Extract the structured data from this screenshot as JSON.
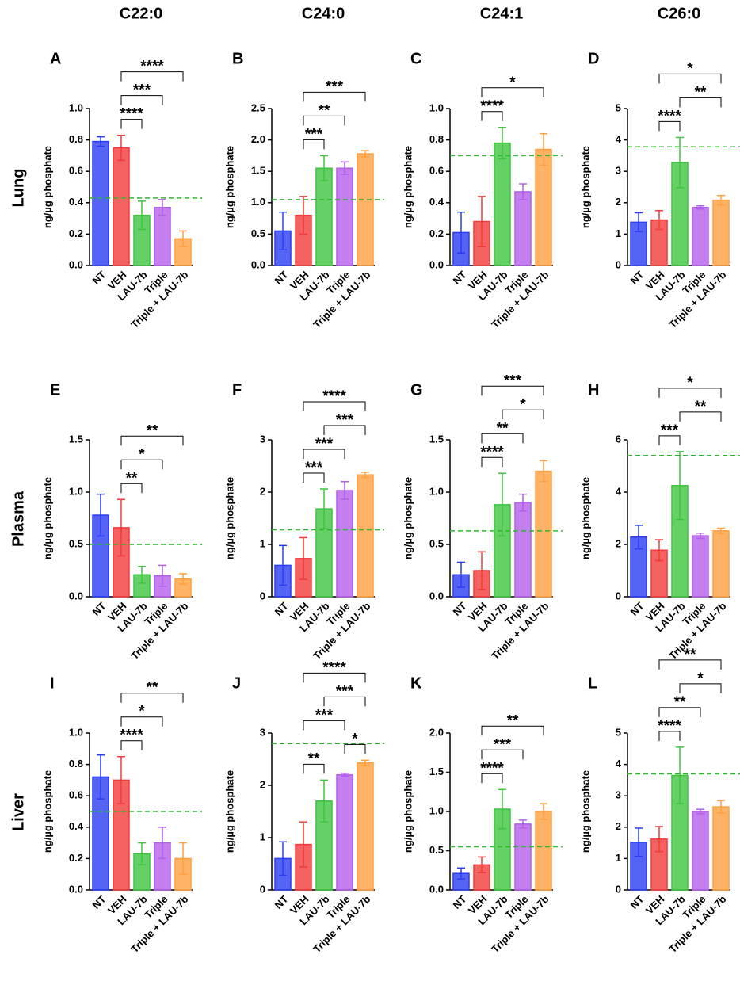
{
  "column_titles": [
    "C22:0",
    "C24:0",
    "C24:1",
    "C26:0"
  ],
  "row_labels": [
    "Lung",
    "Plasma",
    "Liver"
  ],
  "chart_data": [
    {
      "type": "bar",
      "panel": "A",
      "ylabel": "ng/µg phosphate",
      "categories": [
        "NT",
        "VEH",
        "LAU-7b",
        "Triple",
        "Triple + LAU-7b"
      ],
      "colors": [
        "#2b3df2",
        "#f23b3b",
        "#3fc43f",
        "#b35fe8",
        "#ffa040"
      ],
      "values": [
        0.79,
        0.75,
        0.32,
        0.37,
        0.17
      ],
      "errors": [
        0.03,
        0.08,
        0.09,
        0.05,
        0.05
      ],
      "ylim": [
        0,
        1
      ],
      "yticks": [
        {
          "value": 0,
          "label": "0.0"
        },
        0.2,
        0.4,
        0.6,
        0.8,
        {
          "value": 1,
          "label": "1.0"
        }
      ],
      "reference_line": 0.43,
      "reference_color": "#2cb82c",
      "annotations": [
        {
          "from": "VEH",
          "to": "LAU-7b",
          "label": "****"
        },
        {
          "from": "VEH",
          "to": "Triple",
          "label": "***"
        },
        {
          "from": "VEH",
          "to": "Triple + LAU-7b",
          "label": "****"
        }
      ]
    },
    {
      "type": "bar",
      "panel": "B",
      "ylabel": "ng/µg phosphate",
      "categories": [
        "NT",
        "VEH",
        "LAU-7b",
        "Triple",
        "Triple + LAU-7b"
      ],
      "colors": [
        "#2b3df2",
        "#f23b3b",
        "#3fc43f",
        "#b35fe8",
        "#ffa040"
      ],
      "values": [
        0.55,
        0.8,
        1.55,
        1.55,
        1.78
      ],
      "errors": [
        0.3,
        0.3,
        0.2,
        0.1,
        0.05
      ],
      "ylim": [
        0,
        2.5
      ],
      "yticks": [
        {
          "value": 0,
          "label": "0.0"
        },
        0.5,
        {
          "value": 1,
          "label": "1.0"
        },
        1.5,
        {
          "value": 2,
          "label": "2.0"
        },
        2.5
      ],
      "reference_line": 1.05,
      "reference_color": "#2cb82c",
      "annotations": [
        {
          "from": "VEH",
          "to": "LAU-7b",
          "label": "***"
        },
        {
          "from": "VEH",
          "to": "Triple",
          "label": "**"
        },
        {
          "from": "VEH",
          "to": "Triple + LAU-7b",
          "label": "***"
        }
      ]
    },
    {
      "type": "bar",
      "panel": "C",
      "ylabel": "ng/µg phosphate",
      "categories": [
        "NT",
        "VEH",
        "LAU-7b",
        "Triple",
        "Triple + LAU-7b"
      ],
      "colors": [
        "#2b3df2",
        "#f23b3b",
        "#3fc43f",
        "#b35fe8",
        "#ffa040"
      ],
      "values": [
        0.21,
        0.28,
        0.78,
        0.47,
        0.74
      ],
      "errors": [
        0.13,
        0.16,
        0.1,
        0.05,
        0.1
      ],
      "ylim": [
        0,
        1
      ],
      "yticks": [
        {
          "value": 0,
          "label": "0.0"
        },
        0.2,
        0.4,
        0.6,
        0.8,
        {
          "value": 1,
          "label": "1.0"
        }
      ],
      "reference_line": 0.7,
      "reference_color": "#2cb82c",
      "annotations": [
        {
          "from": "VEH",
          "to": "LAU-7b",
          "label": "****"
        },
        {
          "from": "VEH",
          "to": "Triple + LAU-7b",
          "label": "*"
        }
      ]
    },
    {
      "type": "bar",
      "panel": "D",
      "ylabel": "ng/µg phosphate",
      "categories": [
        "NT",
        "VEH",
        "LAU-7b",
        "Triple",
        "Triple + LAU-7b"
      ],
      "colors": [
        "#2b3df2",
        "#f23b3b",
        "#3fc43f",
        "#b35fe8",
        "#ffa040"
      ],
      "values": [
        1.38,
        1.45,
        3.28,
        1.85,
        2.08
      ],
      "errors": [
        0.3,
        0.3,
        0.8,
        0.05,
        0.15
      ],
      "ylim": [
        0,
        5
      ],
      "yticks": [
        0,
        1,
        2,
        3,
        4,
        5
      ],
      "reference_line": 3.78,
      "reference_color": "#2cb82c",
      "annotations": [
        {
          "from": "VEH",
          "to": "LAU-7b",
          "label": "****"
        },
        {
          "from": "LAU-7b",
          "to": "Triple + LAU-7b",
          "label": "**"
        },
        {
          "from": "VEH",
          "to": "Triple + LAU-7b",
          "label": "*"
        }
      ]
    },
    {
      "type": "bar",
      "panel": "E",
      "ylabel": "ng/µg phosphate",
      "categories": [
        "NT",
        "VEH",
        "LAU-7b",
        "Triple",
        "Triple + LAU-7b"
      ],
      "colors": [
        "#2b3df2",
        "#f23b3b",
        "#3fc43f",
        "#b35fe8",
        "#ffa040"
      ],
      "values": [
        0.78,
        0.66,
        0.21,
        0.2,
        0.17
      ],
      "errors": [
        0.2,
        0.27,
        0.08,
        0.1,
        0.05
      ],
      "ylim": [
        0,
        1.5
      ],
      "yticks": [
        {
          "value": 0,
          "label": "0.0"
        },
        0.5,
        {
          "value": 1,
          "label": "1.0"
        },
        1.5
      ],
      "reference_line": 0.5,
      "reference_color": "#2cb82c",
      "annotations": [
        {
          "from": "VEH",
          "to": "LAU-7b",
          "label": "**"
        },
        {
          "from": "VEH",
          "to": "Triple",
          "label": "*"
        },
        {
          "from": "VEH",
          "to": "Triple + LAU-7b",
          "label": "**"
        }
      ]
    },
    {
      "type": "bar",
      "panel": "F",
      "ylabel": "ng/µg phosphate",
      "categories": [
        "NT",
        "VEH",
        "LAU-7b",
        "Triple",
        "Triple + LAU-7b"
      ],
      "colors": [
        "#2b3df2",
        "#f23b3b",
        "#3fc43f",
        "#b35fe8",
        "#ffa040"
      ],
      "values": [
        0.6,
        0.73,
        1.68,
        2.03,
        2.33
      ],
      "errors": [
        0.38,
        0.4,
        0.38,
        0.17,
        0.05
      ],
      "ylim": [
        0,
        3
      ],
      "yticks": [
        0,
        1,
        2,
        3
      ],
      "reference_line": 1.28,
      "reference_color": "#2cb82c",
      "annotations": [
        {
          "from": "VEH",
          "to": "LAU-7b",
          "label": "***"
        },
        {
          "from": "VEH",
          "to": "Triple",
          "label": "***"
        },
        {
          "from": "LAU-7b",
          "to": "Triple + LAU-7b",
          "label": "***"
        },
        {
          "from": "VEH",
          "to": "Triple + LAU-7b",
          "label": "****"
        }
      ]
    },
    {
      "type": "bar",
      "panel": "G",
      "ylabel": "ng/µg phosphate",
      "categories": [
        "NT",
        "VEH",
        "LAU-7b",
        "Triple",
        "Triple + LAU-7b"
      ],
      "colors": [
        "#2b3df2",
        "#f23b3b",
        "#3fc43f",
        "#b35fe8",
        "#ffa040"
      ],
      "values": [
        0.21,
        0.25,
        0.88,
        0.9,
        1.2
      ],
      "errors": [
        0.12,
        0.18,
        0.3,
        0.08,
        0.1
      ],
      "ylim": [
        0,
        1.5
      ],
      "yticks": [
        {
          "value": 0,
          "label": "0.0"
        },
        0.5,
        {
          "value": 1,
          "label": "1.0"
        },
        1.5
      ],
      "reference_line": 0.63,
      "reference_color": "#2cb82c",
      "annotations": [
        {
          "from": "VEH",
          "to": "LAU-7b",
          "label": "****"
        },
        {
          "from": "VEH",
          "to": "Triple",
          "label": "**"
        },
        {
          "from": "LAU-7b",
          "to": "Triple + LAU-7b",
          "label": "*"
        },
        {
          "from": "VEH",
          "to": "Triple + LAU-7b",
          "label": "***"
        }
      ]
    },
    {
      "type": "bar",
      "panel": "H",
      "ylabel": "ng/µg phosphate",
      "categories": [
        "NT",
        "VEH",
        "LAU-7b",
        "Triple",
        "Triple + LAU-7b"
      ],
      "colors": [
        "#2b3df2",
        "#f23b3b",
        "#3fc43f",
        "#b35fe8",
        "#ffa040"
      ],
      "values": [
        2.28,
        1.78,
        4.25,
        2.33,
        2.52
      ],
      "errors": [
        0.45,
        0.4,
        1.3,
        0.1,
        0.1
      ],
      "ylim": [
        0,
        6
      ],
      "yticks": [
        0,
        2,
        4,
        6
      ],
      "reference_line": 5.4,
      "reference_color": "#2cb82c",
      "annotations": [
        {
          "from": "VEH",
          "to": "LAU-7b",
          "label": "***"
        },
        {
          "from": "LAU-7b",
          "to": "Triple + LAU-7b",
          "label": "**"
        },
        {
          "from": "VEH",
          "to": "Triple + LAU-7b",
          "label": "*"
        }
      ]
    },
    {
      "type": "bar",
      "panel": "I",
      "ylabel": "ng/µg phosphate",
      "categories": [
        "NT",
        "VEH",
        "LAU-7b",
        "Triple",
        "Triple + LAU-7b"
      ],
      "colors": [
        "#2b3df2",
        "#f23b3b",
        "#3fc43f",
        "#b35fe8",
        "#ffa040"
      ],
      "values": [
        0.72,
        0.7,
        0.23,
        0.3,
        0.2
      ],
      "errors": [
        0.14,
        0.15,
        0.07,
        0.1,
        0.1
      ],
      "ylim": [
        0,
        1
      ],
      "yticks": [
        {
          "value": 0,
          "label": "0.0"
        },
        0.2,
        0.4,
        0.6,
        0.8,
        {
          "value": 1,
          "label": "1.0"
        }
      ],
      "reference_line": 0.5,
      "reference_color": "#2cb82c",
      "annotations": [
        {
          "from": "VEH",
          "to": "LAU-7b",
          "label": "****"
        },
        {
          "from": "VEH",
          "to": "Triple",
          "label": "*"
        },
        {
          "from": "VEH",
          "to": "Triple + LAU-7b",
          "label": "**"
        }
      ]
    },
    {
      "type": "bar",
      "panel": "J",
      "ylabel": "ng/µg phosphate",
      "categories": [
        "NT",
        "VEH",
        "LAU-7b",
        "Triple",
        "Triple + LAU-7b"
      ],
      "colors": [
        "#2b3df2",
        "#f23b3b",
        "#3fc43f",
        "#b35fe8",
        "#ffa040"
      ],
      "values": [
        0.6,
        0.87,
        1.7,
        2.2,
        2.43
      ],
      "errors": [
        0.32,
        0.43,
        0.4,
        0.03,
        0.05
      ],
      "ylim": [
        0,
        3
      ],
      "yticks": [
        0,
        1,
        2,
        3
      ],
      "reference_line": 2.8,
      "reference_color": "#2cb82c",
      "annotations": [
        {
          "from": "VEH",
          "to": "LAU-7b",
          "label": "**"
        },
        {
          "from": "Triple",
          "to": "Triple + LAU-7b",
          "label": "*"
        },
        {
          "from": "VEH",
          "to": "Triple",
          "label": "***"
        },
        {
          "from": "LAU-7b",
          "to": "Triple + LAU-7b",
          "label": "***"
        },
        {
          "from": "VEH",
          "to": "Triple + LAU-7b",
          "label": "****"
        }
      ]
    },
    {
      "type": "bar",
      "panel": "K",
      "ylabel": "ng/µg phosphate",
      "categories": [
        "NT",
        "VEH",
        "LAU-7b",
        "Triple",
        "Triple + LAU-7b"
      ],
      "colors": [
        "#2b3df2",
        "#f23b3b",
        "#3fc43f",
        "#b35fe8",
        "#ffa040"
      ],
      "values": [
        0.21,
        0.32,
        1.03,
        0.84,
        1.0
      ],
      "errors": [
        0.07,
        0.1,
        0.25,
        0.05,
        0.1
      ],
      "ylim": [
        0,
        2
      ],
      "yticks": [
        {
          "value": 0,
          "label": "0.0"
        },
        0.5,
        {
          "value": 1,
          "label": "1.0"
        },
        1.5,
        {
          "value": 2,
          "label": "2.0"
        }
      ],
      "reference_line": 0.55,
      "reference_color": "#2cb82c",
      "annotations": [
        {
          "from": "VEH",
          "to": "LAU-7b",
          "label": "****"
        },
        {
          "from": "VEH",
          "to": "Triple",
          "label": "***"
        },
        {
          "from": "VEH",
          "to": "Triple + LAU-7b",
          "label": "**"
        }
      ]
    },
    {
      "type": "bar",
      "panel": "L",
      "ylabel": "ng/µg phosphate",
      "categories": [
        "NT",
        "VEH",
        "LAU-7b",
        "Triple",
        "Triple + LAU-7b"
      ],
      "colors": [
        "#2b3df2",
        "#f23b3b",
        "#3fc43f",
        "#b35fe8",
        "#ffa040"
      ],
      "values": [
        1.52,
        1.62,
        3.65,
        2.5,
        2.65
      ],
      "errors": [
        0.45,
        0.4,
        0.9,
        0.07,
        0.2
      ],
      "ylim": [
        0,
        5
      ],
      "yticks": [
        0,
        1,
        2,
        3,
        4,
        5
      ],
      "reference_line": 3.7,
      "reference_color": "#2cb82c",
      "annotations": [
        {
          "from": "VEH",
          "to": "LAU-7b",
          "label": "****"
        },
        {
          "from": "VEH",
          "to": "Triple",
          "label": "**"
        },
        {
          "from": "LAU-7b",
          "to": "Triple + LAU-7b",
          "label": "*"
        },
        {
          "from": "VEH",
          "to": "Triple + LAU-7b",
          "label": "**"
        }
      ]
    }
  ]
}
